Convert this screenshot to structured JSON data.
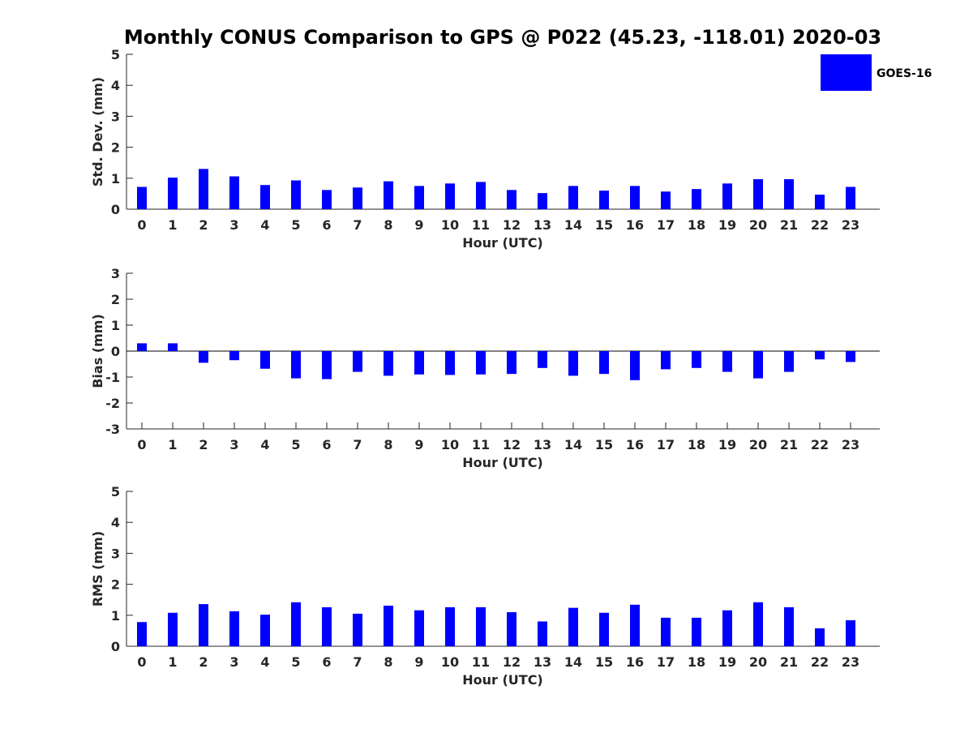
{
  "title": "Monthly CONUS Comparison to GPS @ P022 (45.23, -118.01) 2020-03",
  "legend": {
    "label": "GOES-16",
    "color": "#0000ff"
  },
  "chart_data": [
    {
      "type": "bar",
      "xlabel": "Hour (UTC)",
      "ylabel": "Std. Dev. (mm)",
      "ylim": [
        0,
        5
      ],
      "yticks": [
        0,
        1,
        2,
        3,
        4,
        5
      ],
      "categories": [
        "0",
        "1",
        "2",
        "3",
        "4",
        "5",
        "6",
        "7",
        "8",
        "9",
        "10",
        "11",
        "12",
        "13",
        "14",
        "15",
        "16",
        "17",
        "18",
        "19",
        "20",
        "21",
        "22",
        "23"
      ],
      "series": [
        {
          "name": "GOES-16",
          "values": [
            0.72,
            1.02,
            1.3,
            1.06,
            0.78,
            0.93,
            0.62,
            0.7,
            0.9,
            0.75,
            0.83,
            0.88,
            0.62,
            0.52,
            0.75,
            0.6,
            0.75,
            0.57,
            0.65,
            0.83,
            0.97,
            0.97,
            0.47,
            0.72
          ]
        }
      ]
    },
    {
      "type": "bar",
      "xlabel": "Hour (UTC)",
      "ylabel": "Bias (mm)",
      "ylim": [
        -3,
        3
      ],
      "yticks": [
        -3,
        -2,
        -1,
        0,
        1,
        2,
        3
      ],
      "categories": [
        "0",
        "1",
        "2",
        "3",
        "4",
        "5",
        "6",
        "7",
        "8",
        "9",
        "10",
        "11",
        "12",
        "13",
        "14",
        "15",
        "16",
        "17",
        "18",
        "19",
        "20",
        "21",
        "22",
        "23"
      ],
      "series": [
        {
          "name": "GOES-16",
          "values": [
            0.3,
            0.3,
            -0.45,
            -0.35,
            -0.68,
            -1.05,
            -1.08,
            -0.8,
            -0.95,
            -0.9,
            -0.92,
            -0.9,
            -0.88,
            -0.65,
            -0.95,
            -0.88,
            -1.12,
            -0.7,
            -0.65,
            -0.8,
            -1.05,
            -0.8,
            -0.32,
            -0.42
          ]
        }
      ]
    },
    {
      "type": "bar",
      "xlabel": "Hour (UTC)",
      "ylabel": "RMS (mm)",
      "ylim": [
        0,
        5
      ],
      "yticks": [
        0,
        1,
        2,
        3,
        4,
        5
      ],
      "categories": [
        "0",
        "1",
        "2",
        "3",
        "4",
        "5",
        "6",
        "7",
        "8",
        "9",
        "10",
        "11",
        "12",
        "13",
        "14",
        "15",
        "16",
        "17",
        "18",
        "19",
        "20",
        "21",
        "22",
        "23"
      ],
      "series": [
        {
          "name": "GOES-16",
          "values": [
            0.78,
            1.08,
            1.36,
            1.13,
            1.02,
            1.42,
            1.26,
            1.05,
            1.31,
            1.16,
            1.26,
            1.26,
            1.1,
            0.8,
            1.24,
            1.08,
            1.34,
            0.92,
            0.92,
            1.16,
            1.42,
            1.26,
            0.58,
            0.84
          ]
        }
      ]
    }
  ]
}
